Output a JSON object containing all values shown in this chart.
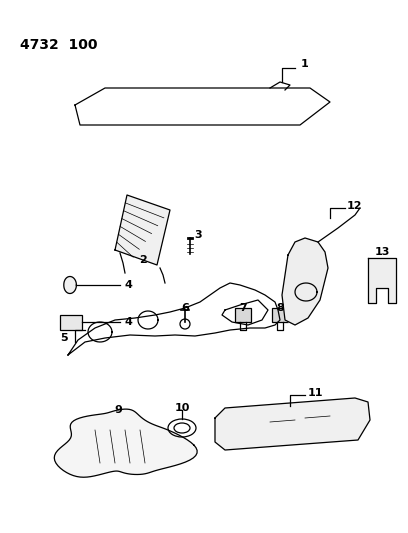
{
  "title": "4732  100",
  "bg": "#ffffff",
  "lc": "#000000",
  "fig_w": 4.08,
  "fig_h": 5.33,
  "dpi": 100
}
